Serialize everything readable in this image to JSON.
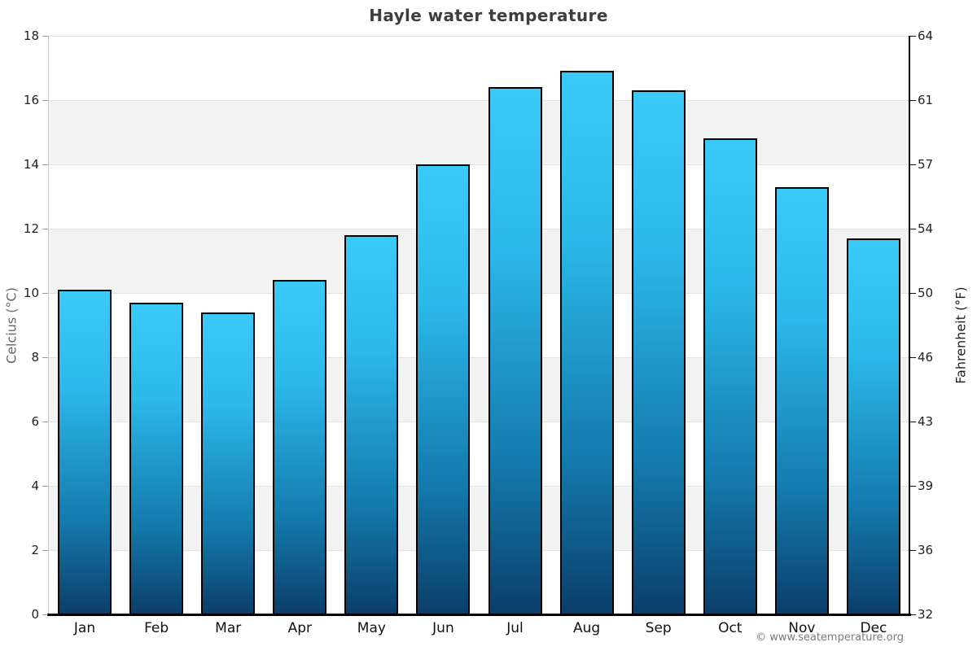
{
  "title": "Hayle water temperature",
  "footer": "© www.seatemperature.org",
  "chart_data": {
    "type": "bar",
    "title": "Hayle water temperature",
    "categories": [
      "Jan",
      "Feb",
      "Mar",
      "Apr",
      "May",
      "Jun",
      "Jul",
      "Aug",
      "Sep",
      "Oct",
      "Nov",
      "Dec"
    ],
    "values": [
      10.1,
      9.7,
      9.4,
      10.4,
      11.8,
      14.0,
      16.4,
      16.9,
      16.3,
      14.8,
      13.3,
      11.7
    ],
    "xlabel": "",
    "ylabel_left": "Celcius (°C)",
    "ylabel_right": "Fahrenheit (°F)",
    "ylim": [
      0,
      18
    ],
    "tick_values": [
      0,
      2,
      4,
      6,
      8,
      10,
      12,
      14,
      16,
      18
    ],
    "left_ticks": [
      "0",
      "2",
      "4",
      "6",
      "8",
      "10",
      "12",
      "14",
      "16",
      "18"
    ],
    "right_ticks": [
      "32",
      "36",
      "39",
      "43",
      "46",
      "50",
      "54",
      "57",
      "61",
      "64"
    ],
    "grid": true,
    "band_fill": "#f3f3f3",
    "gridline_color": "#e1e1e1",
    "bar_color_top": "#3acaf8",
    "bar_color_bottom": "#0b3e6a",
    "bar_border_color": "#000000",
    "legend": "none"
  }
}
